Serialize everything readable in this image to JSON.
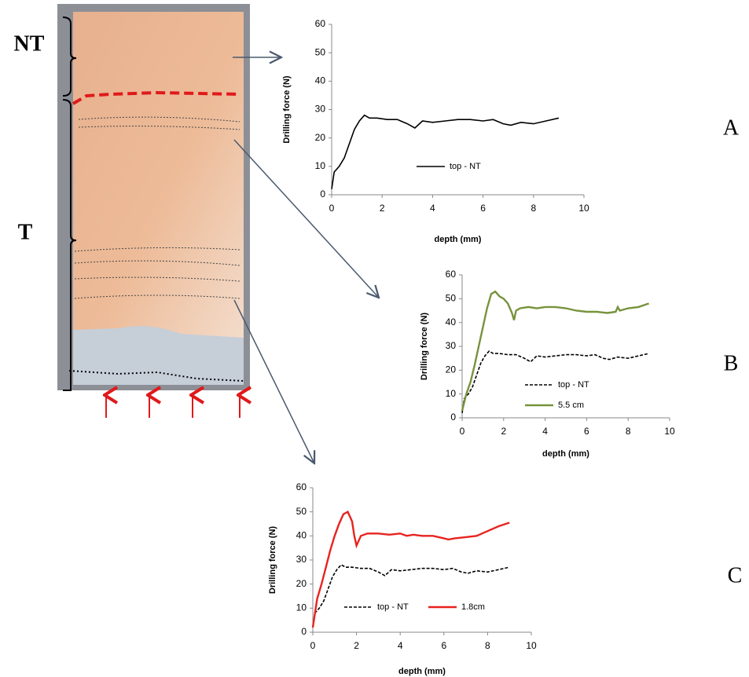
{
  "region_labels": [
    "NT",
    "T"
  ],
  "panel_labels": [
    "A",
    "B",
    "C"
  ],
  "chart_data": [
    {
      "type": "line",
      "xlabel": "depth  (mm)",
      "ylabel": "Drilling force (N)",
      "xlim": [
        0,
        10
      ],
      "xticks": [
        0,
        2,
        4,
        6,
        8,
        10
      ],
      "ylim": [
        0,
        60
      ],
      "yticks": [
        0,
        10,
        20,
        30,
        40,
        50,
        60
      ],
      "series": [
        {
          "name": "top - NT",
          "color": "#000000",
          "style": "solid",
          "x": [
            0,
            0.1,
            0.3,
            0.5,
            0.7,
            0.9,
            1.1,
            1.3,
            1.5,
            1.8,
            2.2,
            2.6,
            3.0,
            3.3,
            3.6,
            4.0,
            4.5,
            5.0,
            5.5,
            6.0,
            6.4,
            6.8,
            7.1,
            7.5,
            8.0,
            8.5,
            9.0
          ],
          "values": [
            2,
            8,
            10,
            13,
            18,
            23,
            26,
            28,
            27,
            27,
            26.5,
            26.5,
            25,
            23.5,
            26,
            25.5,
            26,
            26.5,
            26.5,
            26,
            26.5,
            25,
            24.5,
            25.5,
            25,
            26,
            27
          ]
        }
      ]
    },
    {
      "type": "line",
      "xlabel": "depth  (mm)",
      "ylabel": "Drilling force (N)",
      "xlim": [
        0,
        10
      ],
      "xticks": [
        0,
        2,
        4,
        6,
        8,
        10
      ],
      "ylim": [
        0,
        60
      ],
      "yticks": [
        0,
        10,
        20,
        30,
        40,
        50,
        60
      ],
      "series": [
        {
          "name": "top - NT",
          "color": "#000000",
          "style": "dashed",
          "x": [
            0,
            0.1,
            0.3,
            0.5,
            0.7,
            0.9,
            1.1,
            1.3,
            1.5,
            1.8,
            2.2,
            2.6,
            3.0,
            3.3,
            3.6,
            4.0,
            4.5,
            5.0,
            5.5,
            6.0,
            6.4,
            6.8,
            7.1,
            7.5,
            8.0,
            8.5,
            9.0
          ],
          "values": [
            2,
            8,
            10,
            13,
            18,
            23,
            26,
            28,
            27,
            27,
            26.5,
            26.5,
            25,
            23.5,
            26,
            25.5,
            26,
            26.5,
            26.5,
            26,
            26.5,
            25,
            24.5,
            25.5,
            25,
            26,
            27
          ]
        },
        {
          "name": "5.5 cm",
          "color": "#77933c",
          "style": "solid",
          "x": [
            0,
            0.2,
            0.4,
            0.6,
            0.8,
            1.0,
            1.2,
            1.4,
            1.6,
            1.8,
            2.0,
            2.2,
            2.4,
            2.5,
            2.6,
            2.8,
            3.2,
            3.6,
            4.0,
            4.5,
            5.0,
            5.5,
            6.0,
            6.5,
            7.0,
            7.4,
            7.5,
            7.6,
            7.8,
            8.0,
            8.5,
            9.0
          ],
          "values": [
            3,
            10,
            15,
            22,
            30,
            38,
            46,
            52,
            53,
            51,
            50,
            48,
            44,
            41,
            45,
            46,
            46.5,
            46,
            46.5,
            46.5,
            46,
            45,
            44.5,
            44.5,
            44,
            44.5,
            46.5,
            45,
            45.5,
            46,
            46.5,
            48
          ]
        }
      ]
    },
    {
      "type": "line",
      "xlabel": "depth  (mm)",
      "ylabel": "Drilling force (N)",
      "xlim": [
        0,
        10
      ],
      "xticks": [
        0,
        2,
        4,
        6,
        8,
        10
      ],
      "ylim": [
        0,
        60
      ],
      "yticks": [
        0,
        10,
        20,
        30,
        40,
        50,
        60
      ],
      "series": [
        {
          "name": "top - NT",
          "color": "#000000",
          "style": "dashed",
          "x": [
            0,
            0.1,
            0.3,
            0.5,
            0.7,
            0.9,
            1.1,
            1.3,
            1.5,
            1.8,
            2.2,
            2.6,
            3.0,
            3.3,
            3.6,
            4.0,
            4.5,
            5.0,
            5.5,
            6.0,
            6.4,
            6.8,
            7.1,
            7.5,
            8.0,
            8.5,
            9.0
          ],
          "values": [
            2,
            8,
            10,
            13,
            18,
            23,
            26,
            28,
            27,
            27,
            26.5,
            26.5,
            25,
            23.5,
            26,
            25.5,
            26,
            26.5,
            26.5,
            26,
            26.5,
            25,
            24.5,
            25.5,
            25,
            26,
            27
          ]
        },
        {
          "name": "1.8cm",
          "color": "#e8231f",
          "style": "solid",
          "x": [
            0,
            0.2,
            0.4,
            0.6,
            0.8,
            1.0,
            1.2,
            1.4,
            1.6,
            1.8,
            1.9,
            2.0,
            2.1,
            2.2,
            2.5,
            3.0,
            3.5,
            4.0,
            4.3,
            4.6,
            5.0,
            5.5,
            6.0,
            6.2,
            6.5,
            7.0,
            7.5,
            8.0,
            8.5,
            9.0
          ],
          "values": [
            2,
            14,
            20,
            27,
            34,
            40,
            45,
            49,
            50,
            46,
            40,
            36,
            38,
            40,
            41,
            41,
            40.5,
            41,
            40,
            40.5,
            40,
            40,
            39,
            38.5,
            39,
            39.5,
            40,
            42,
            44,
            45.5
          ]
        }
      ]
    }
  ]
}
